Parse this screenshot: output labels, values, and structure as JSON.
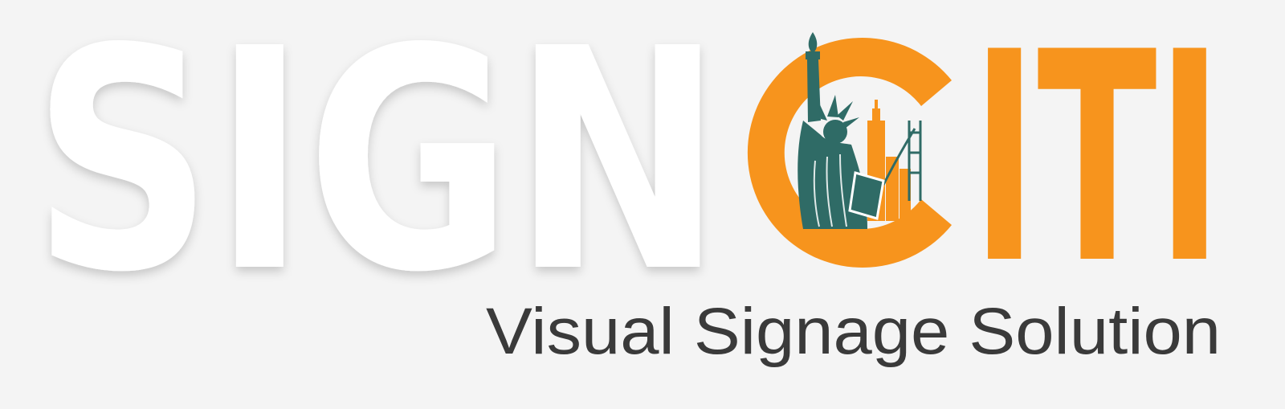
{
  "logo": {
    "word_part_1": "SIGN",
    "word_c": "C",
    "word_part_2": "ITI",
    "tagline": "Visual Signage Solution",
    "icon": "statue-of-liberty-skyline-icon"
  },
  "colors": {
    "background": "#f4f4f4",
    "white_letters": "#ffffff",
    "orange": "#f7941d",
    "teal": "#2f6b66",
    "tagline": "#3a3a3a"
  }
}
